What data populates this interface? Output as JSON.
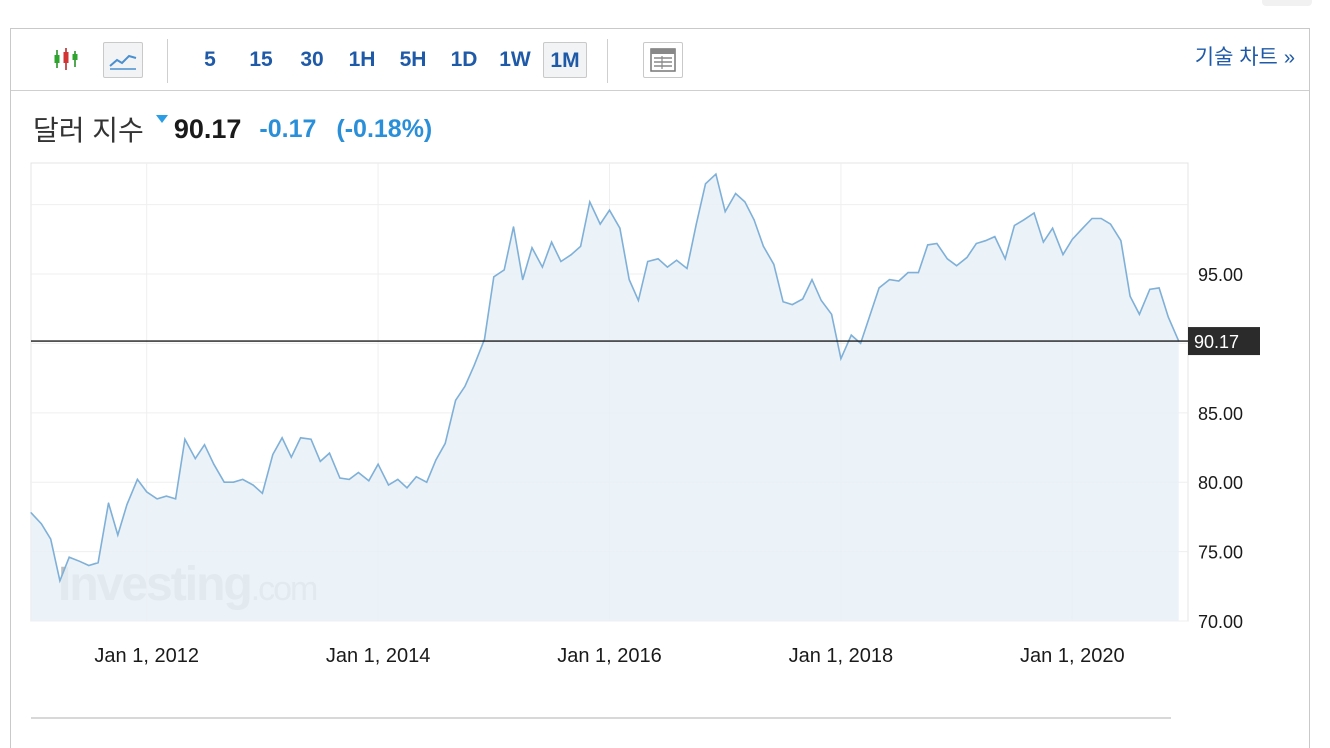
{
  "toolbar": {
    "chart_types": [
      {
        "icon": "candlestick-icon",
        "active": false
      },
      {
        "icon": "line-chart-icon",
        "active": true
      }
    ],
    "intervals": [
      {
        "label": "5",
        "active": false
      },
      {
        "label": "15",
        "active": false
      },
      {
        "label": "30",
        "active": false
      },
      {
        "label": "1H",
        "active": false
      },
      {
        "label": "5H",
        "active": false
      },
      {
        "label": "1D",
        "active": false
      },
      {
        "label": "1W",
        "active": false
      },
      {
        "label": "1M",
        "active": true
      }
    ],
    "layout_icon": "table-layout-icon",
    "tech_chart_label": "기술 차트",
    "tech_chart_arrow": "»"
  },
  "quote": {
    "name": "달러 지수",
    "direction_icon": "down-triangle-icon",
    "price": "90.17",
    "change": "-0.17",
    "change_pct": "(-0.18%)"
  },
  "colors": {
    "line": "#7fb0d8",
    "area_fill": "#e8f0f7",
    "accent_blue": "#1f5aa8",
    "change_blue": "#2a8fd9",
    "price_label_bg": "#2b2b2b"
  },
  "watermark": "Investing.com",
  "chart_data": {
    "type": "area",
    "x_tick_labels": [
      "Jan 1, 2012",
      "Jan 1, 2014",
      "Jan 1, 2016",
      "Jan 1, 2018",
      "Jan 1, 2020"
    ],
    "x_ticks": [
      2012,
      2014,
      2016,
      2018,
      2020
    ],
    "xlim": [
      2011.0,
      2021.0
    ],
    "y_tick_labels": [
      "70.00",
      "75.00",
      "80.00",
      "85.00",
      "95.00"
    ],
    "y_ticks": [
      70,
      75,
      80,
      85,
      95
    ],
    "ylim": [
      70,
      103
    ],
    "current_value": 90.17,
    "current_value_label": "90.17",
    "grid": true,
    "x": [
      2011.0,
      2011.09,
      2011.17,
      2011.25,
      2011.33,
      2011.42,
      2011.5,
      2011.58,
      2011.67,
      2011.75,
      2011.83,
      2011.92,
      2012.0,
      2012.09,
      2012.17,
      2012.25,
      2012.33,
      2012.42,
      2012.5,
      2012.58,
      2012.67,
      2012.75,
      2012.83,
      2012.92,
      2013.0,
      2013.09,
      2013.17,
      2013.25,
      2013.33,
      2013.42,
      2013.5,
      2013.58,
      2013.67,
      2013.75,
      2013.83,
      2013.92,
      2014.0,
      2014.09,
      2014.17,
      2014.25,
      2014.33,
      2014.42,
      2014.5,
      2014.58,
      2014.67,
      2014.75,
      2014.83,
      2014.92,
      2015.0,
      2015.09,
      2015.17,
      2015.25,
      2015.33,
      2015.42,
      2015.5,
      2015.58,
      2015.67,
      2015.75,
      2015.83,
      2015.92,
      2016.0,
      2016.09,
      2016.17,
      2016.25,
      2016.33,
      2016.42,
      2016.5,
      2016.58,
      2016.67,
      2016.75,
      2016.83,
      2016.92,
      2017.0,
      2017.09,
      2017.17,
      2017.25,
      2017.33,
      2017.42,
      2017.5,
      2017.58,
      2017.67,
      2017.75,
      2017.83,
      2017.92,
      2018.0,
      2018.09,
      2018.17,
      2018.25,
      2018.33,
      2018.42,
      2018.5,
      2018.58,
      2018.67,
      2018.75,
      2018.83,
      2018.92,
      2019.0,
      2019.09,
      2019.17,
      2019.25,
      2019.33,
      2019.42,
      2019.5,
      2019.58,
      2019.67,
      2019.75,
      2019.83,
      2019.92,
      2020.0,
      2020.09,
      2020.17,
      2020.25,
      2020.33,
      2020.42,
      2020.5,
      2020.58,
      2020.67,
      2020.75,
      2020.83,
      2020.92
    ],
    "series": [
      {
        "values": [
          77.8,
          77.0,
          75.9,
          72.9,
          74.6,
          74.3,
          74.0,
          74.2,
          78.5,
          76.2,
          78.4,
          80.2,
          79.3,
          78.8,
          79.0,
          78.8,
          83.1,
          81.7,
          82.7,
          81.3,
          80.0,
          80.0,
          80.2,
          79.8,
          79.2,
          82.0,
          83.2,
          81.8,
          83.2,
          83.1,
          81.5,
          82.1,
          80.3,
          80.2,
          80.7,
          80.1,
          81.3,
          79.8,
          80.2,
          79.6,
          80.4,
          80.0,
          81.6,
          82.8,
          85.9,
          86.9,
          88.4,
          90.3,
          94.8,
          95.3,
          98.4,
          94.6,
          96.9,
          95.5,
          97.3,
          95.9,
          96.4,
          97.0,
          100.2,
          98.6,
          99.6,
          98.3,
          94.6,
          93.1,
          95.9,
          96.1,
          95.5,
          96.0,
          95.4,
          98.6,
          101.5,
          102.2,
          99.5,
          100.8,
          100.2,
          98.9,
          97.0,
          95.7,
          93.0,
          92.8,
          93.2,
          94.6,
          93.1,
          92.1,
          88.9,
          90.6,
          90.0,
          92.0,
          94.0,
          94.6,
          94.5,
          95.1,
          95.1,
          97.1,
          97.2,
          96.1,
          95.6,
          96.2,
          97.2,
          97.4,
          97.7,
          96.1,
          98.5,
          98.9,
          99.4,
          97.3,
          98.3,
          96.4,
          97.5,
          98.3,
          99.0,
          99.0,
          98.6,
          97.4,
          93.4,
          92.1,
          93.9,
          94.0,
          91.9,
          90.17
        ]
      }
    ]
  }
}
